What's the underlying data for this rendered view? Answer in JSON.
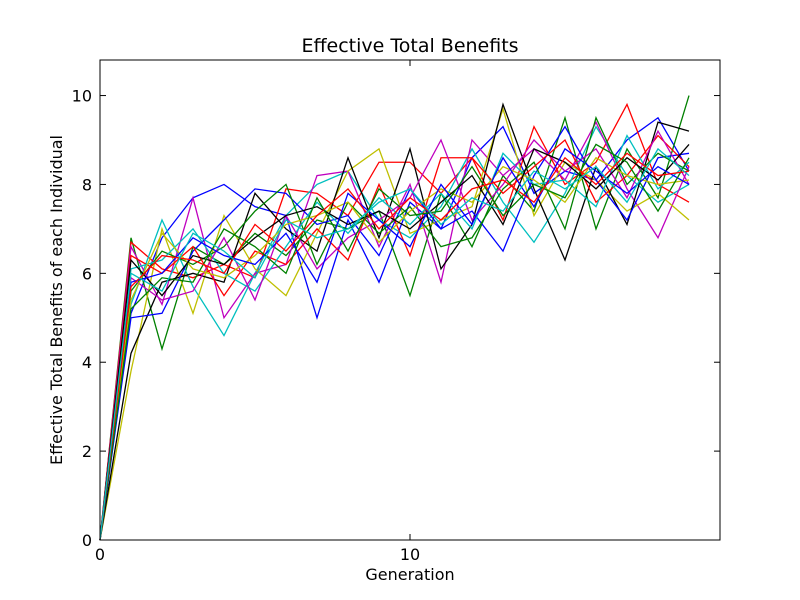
{
  "chart_data": {
    "type": "line",
    "title": "Effective Total Benefits",
    "xlabel": "Generation",
    "ylabel": "Effective Total Benefits of each Individual",
    "xlim": [
      0,
      20
    ],
    "ylim": [
      0,
      10.8
    ],
    "xticks": [
      0,
      10
    ],
    "yticks": [
      0,
      2,
      4,
      6,
      8,
      10
    ],
    "xtick_labels": [
      "0",
      "10"
    ],
    "ytick_labels": [
      "0",
      "2",
      "4",
      "6",
      "8",
      "10"
    ],
    "grid": false,
    "legend": "none",
    "x": [
      0,
      1,
      2,
      3,
      4,
      5,
      6,
      7,
      8,
      9,
      10,
      11,
      12,
      13,
      14,
      15,
      16,
      17,
      18,
      19
    ],
    "series": [
      {
        "color": "#0000ff",
        "values": [
          0.0,
          5.1,
          6.8,
          7.7,
          8.0,
          7.5,
          7.3,
          5.0,
          7.2,
          5.8,
          7.6,
          7.0,
          8.6,
          9.3,
          7.8,
          8.3,
          8.1,
          9.0,
          9.5,
          8.3
        ]
      },
      {
        "color": "#008000",
        "values": [
          0.0,
          6.8,
          4.3,
          6.6,
          6.2,
          6.9,
          6.4,
          7.2,
          7.0,
          7.4,
          5.5,
          7.8,
          6.6,
          8.2,
          7.4,
          9.5,
          7.0,
          8.8,
          7.7,
          10.0
        ]
      },
      {
        "color": "#ff0000",
        "values": [
          0.0,
          6.7,
          6.1,
          5.9,
          6.2,
          5.9,
          7.9,
          7.8,
          7.3,
          8.5,
          8.5,
          7.8,
          8.6,
          7.2,
          9.3,
          8.0,
          8.5,
          9.8,
          8.0,
          7.6
        ]
      },
      {
        "color": "#00bfbf",
        "values": [
          0.0,
          5.3,
          7.2,
          5.7,
          4.6,
          6.0,
          7.3,
          8.0,
          8.3,
          7.2,
          6.8,
          7.5,
          8.8,
          7.6,
          6.7,
          7.8,
          9.3,
          8.2,
          7.6,
          8.0
        ]
      },
      {
        "color": "#bf00bf",
        "values": [
          0.0,
          6.6,
          5.3,
          7.7,
          5.0,
          6.0,
          6.2,
          8.2,
          8.3,
          6.6,
          8.0,
          5.8,
          9.0,
          8.2,
          8.8,
          8.1,
          9.4,
          7.9,
          6.8,
          8.4
        ]
      },
      {
        "color": "#bfbf00",
        "values": [
          0.0,
          3.8,
          7.0,
          5.1,
          7.3,
          6.1,
          5.5,
          6.9,
          8.3,
          8.8,
          6.9,
          7.2,
          7.5,
          9.7,
          7.3,
          8.5,
          8.1,
          7.4,
          7.8,
          7.2
        ]
      },
      {
        "color": "#000000",
        "values": [
          0.0,
          4.2,
          5.8,
          6.0,
          5.8,
          7.8,
          7.0,
          6.5,
          8.6,
          6.8,
          8.8,
          6.1,
          7.1,
          9.8,
          7.9,
          6.3,
          8.4,
          7.1,
          9.4,
          9.2
        ]
      },
      {
        "color": "#0000ff",
        "values": [
          0.0,
          5.0,
          5.1,
          6.5,
          7.2,
          7.9,
          7.8,
          7.1,
          7.3,
          6.4,
          7.9,
          7.0,
          7.4,
          6.5,
          8.2,
          9.3,
          8.1,
          7.2,
          8.6,
          8.7
        ]
      },
      {
        "color": "#008000",
        "values": [
          0.0,
          5.6,
          6.5,
          6.2,
          6.6,
          7.4,
          8.0,
          6.2,
          7.6,
          6.9,
          7.5,
          6.6,
          6.8,
          7.9,
          8.5,
          7.0,
          9.5,
          8.0,
          8.7,
          8.3
        ]
      },
      {
        "color": "#ff0000",
        "values": [
          0.0,
          6.4,
          6.0,
          6.6,
          5.5,
          6.5,
          6.2,
          7.0,
          6.3,
          8.0,
          6.4,
          8.6,
          8.6,
          7.8,
          8.4,
          9.0,
          7.6,
          8.2,
          9.1,
          8.4
        ]
      },
      {
        "color": "#00bfbf",
        "values": [
          0.0,
          6.1,
          6.3,
          7.0,
          6.0,
          5.6,
          6.6,
          7.6,
          6.9,
          7.7,
          7.1,
          7.8,
          7.0,
          8.7,
          8.0,
          8.1,
          7.5,
          9.1,
          7.9,
          8.5
        ]
      },
      {
        "color": "#bf00bf",
        "values": [
          0.0,
          5.9,
          5.4,
          5.6,
          6.8,
          5.4,
          7.3,
          6.1,
          6.8,
          7.2,
          7.7,
          9.0,
          7.2,
          8.0,
          9.0,
          8.3,
          8.8,
          7.7,
          9.2,
          8.0
        ]
      },
      {
        "color": "#bfbf00",
        "values": [
          0.0,
          5.4,
          6.9,
          6.1,
          5.9,
          6.4,
          7.1,
          7.3,
          7.6,
          6.7,
          7.4,
          7.9,
          7.6,
          8.4,
          8.1,
          7.6,
          8.6,
          8.2,
          8.0,
          8.1
        ]
      },
      {
        "color": "#000000",
        "values": [
          0.0,
          6.3,
          5.5,
          6.4,
          6.2,
          6.8,
          7.3,
          7.5,
          7.1,
          7.4,
          7.0,
          7.6,
          8.2,
          7.1,
          8.8,
          8.5,
          7.9,
          8.6,
          8.1,
          8.9
        ]
      },
      {
        "color": "#0000ff",
        "values": [
          0.0,
          5.8,
          6.0,
          6.8,
          6.4,
          6.2,
          6.9,
          5.8,
          7.8,
          7.2,
          6.6,
          8.0,
          7.1,
          8.6,
          7.5,
          8.8,
          8.3,
          7.8,
          8.4,
          8.0
        ]
      },
      {
        "color": "#008000",
        "values": [
          0.0,
          5.2,
          5.9,
          5.8,
          7.0,
          6.6,
          6.0,
          7.7,
          6.5,
          7.9,
          7.3,
          7.4,
          8.4,
          7.3,
          8.0,
          7.7,
          8.9,
          8.5,
          7.4,
          8.6
        ]
      },
      {
        "color": "#ff0000",
        "values": [
          0.0,
          5.7,
          6.4,
          6.3,
          6.0,
          7.1,
          6.5,
          7.3,
          7.9,
          7.0,
          7.7,
          7.2,
          7.9,
          8.1,
          7.6,
          8.6,
          8.0,
          8.7,
          8.2,
          8.3
        ]
      },
      {
        "color": "#00bfbf",
        "values": [
          0.0,
          6.0,
          5.6,
          6.9,
          6.5,
          5.9,
          7.2,
          6.8,
          7.0,
          7.6,
          7.9,
          7.1,
          7.7,
          7.4,
          8.3,
          7.9,
          8.4,
          7.6,
          8.8,
          8.2
        ]
      }
    ]
  }
}
